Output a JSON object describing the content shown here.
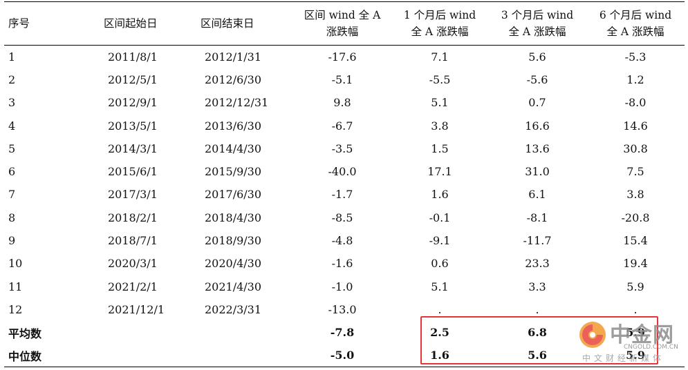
{
  "header": {
    "col0": "序号",
    "col1": "区间起始日",
    "col2": "区间结束日",
    "col3_line1": "区间 wind 全 A",
    "col3_line2": "涨跌幅",
    "col4_line1": "1 个月后 wind",
    "col4_line2": "全 A 涨跌幅",
    "col5_line1": "3 个月后 wind",
    "col5_line2": "全 A 涨跌幅",
    "col6_line1": "6 个月后 wind",
    "col6_line2": "全 A 涨跌幅"
  },
  "rows": [
    {
      "idx": "1",
      "start": "2011/8/1",
      "end": "2012/1/31",
      "range": "-17.6",
      "m1": "7.1",
      "m3": "5.6",
      "m6": "-5.3"
    },
    {
      "idx": "2",
      "start": "2012/5/1",
      "end": "2012/6/30",
      "range": "-5.1",
      "m1": "-5.5",
      "m3": "-5.6",
      "m6": "1.2"
    },
    {
      "idx": "3",
      "start": "2012/9/1",
      "end": "2012/12/31",
      "range": "9.8",
      "m1": "5.1",
      "m3": "0.7",
      "m6": "-8.0"
    },
    {
      "idx": "4",
      "start": "2013/5/1",
      "end": "2013/6/30",
      "range": "-6.7",
      "m1": "3.8",
      "m3": "16.6",
      "m6": "14.6"
    },
    {
      "idx": "5",
      "start": "2014/3/1",
      "end": "2014/4/30",
      "range": "-3.5",
      "m1": "1.5",
      "m3": "13.6",
      "m6": "30.8"
    },
    {
      "idx": "6",
      "start": "2015/6/1",
      "end": "2015/9/30",
      "range": "-40.0",
      "m1": "17.1",
      "m3": "31.0",
      "m6": "7.5"
    },
    {
      "idx": "7",
      "start": "2017/3/1",
      "end": "2017/6/30",
      "range": "-1.7",
      "m1": "1.6",
      "m3": "6.1",
      "m6": "3.8"
    },
    {
      "idx": "8",
      "start": "2018/2/1",
      "end": "2018/4/30",
      "range": "-8.5",
      "m1": "-0.1",
      "m3": "-8.1",
      "m6": "-20.8"
    },
    {
      "idx": "9",
      "start": "2018/7/1",
      "end": "2018/9/30",
      "range": "-4.8",
      "m1": "-9.1",
      "m3": "-11.7",
      "m6": "15.4"
    },
    {
      "idx": "10",
      "start": "2020/3/1",
      "end": "2020/4/30",
      "range": "-1.6",
      "m1": "0.6",
      "m3": "23.3",
      "m6": "19.4"
    },
    {
      "idx": "11",
      "start": "2021/2/1",
      "end": "2021/4/30",
      "range": "-1.0",
      "m1": "5.1",
      "m3": "3.3",
      "m6": "5.9"
    },
    {
      "idx": "12",
      "start": "2021/12/1",
      "end": "2022/3/31",
      "range": "-13.0",
      "m1": ".",
      "m3": ".",
      "m6": "."
    }
  ],
  "summary": [
    {
      "label": "平均数",
      "range": "-7.8",
      "m1": "2.5",
      "m3": "6.8",
      "m6": "5.9"
    },
    {
      "label": "中位数",
      "range": "-5.0",
      "m1": "1.6",
      "m3": "5.6",
      "m6": "5.9"
    }
  ],
  "watermark": {
    "name": "中金网",
    "url": "CNGOLD.COM.CN",
    "subtitle": "中文财经新媒体"
  },
  "colors": {
    "highlight_border": "#e8323a",
    "logo_orange": "#f29a2e",
    "logo_red": "#e8453c"
  }
}
